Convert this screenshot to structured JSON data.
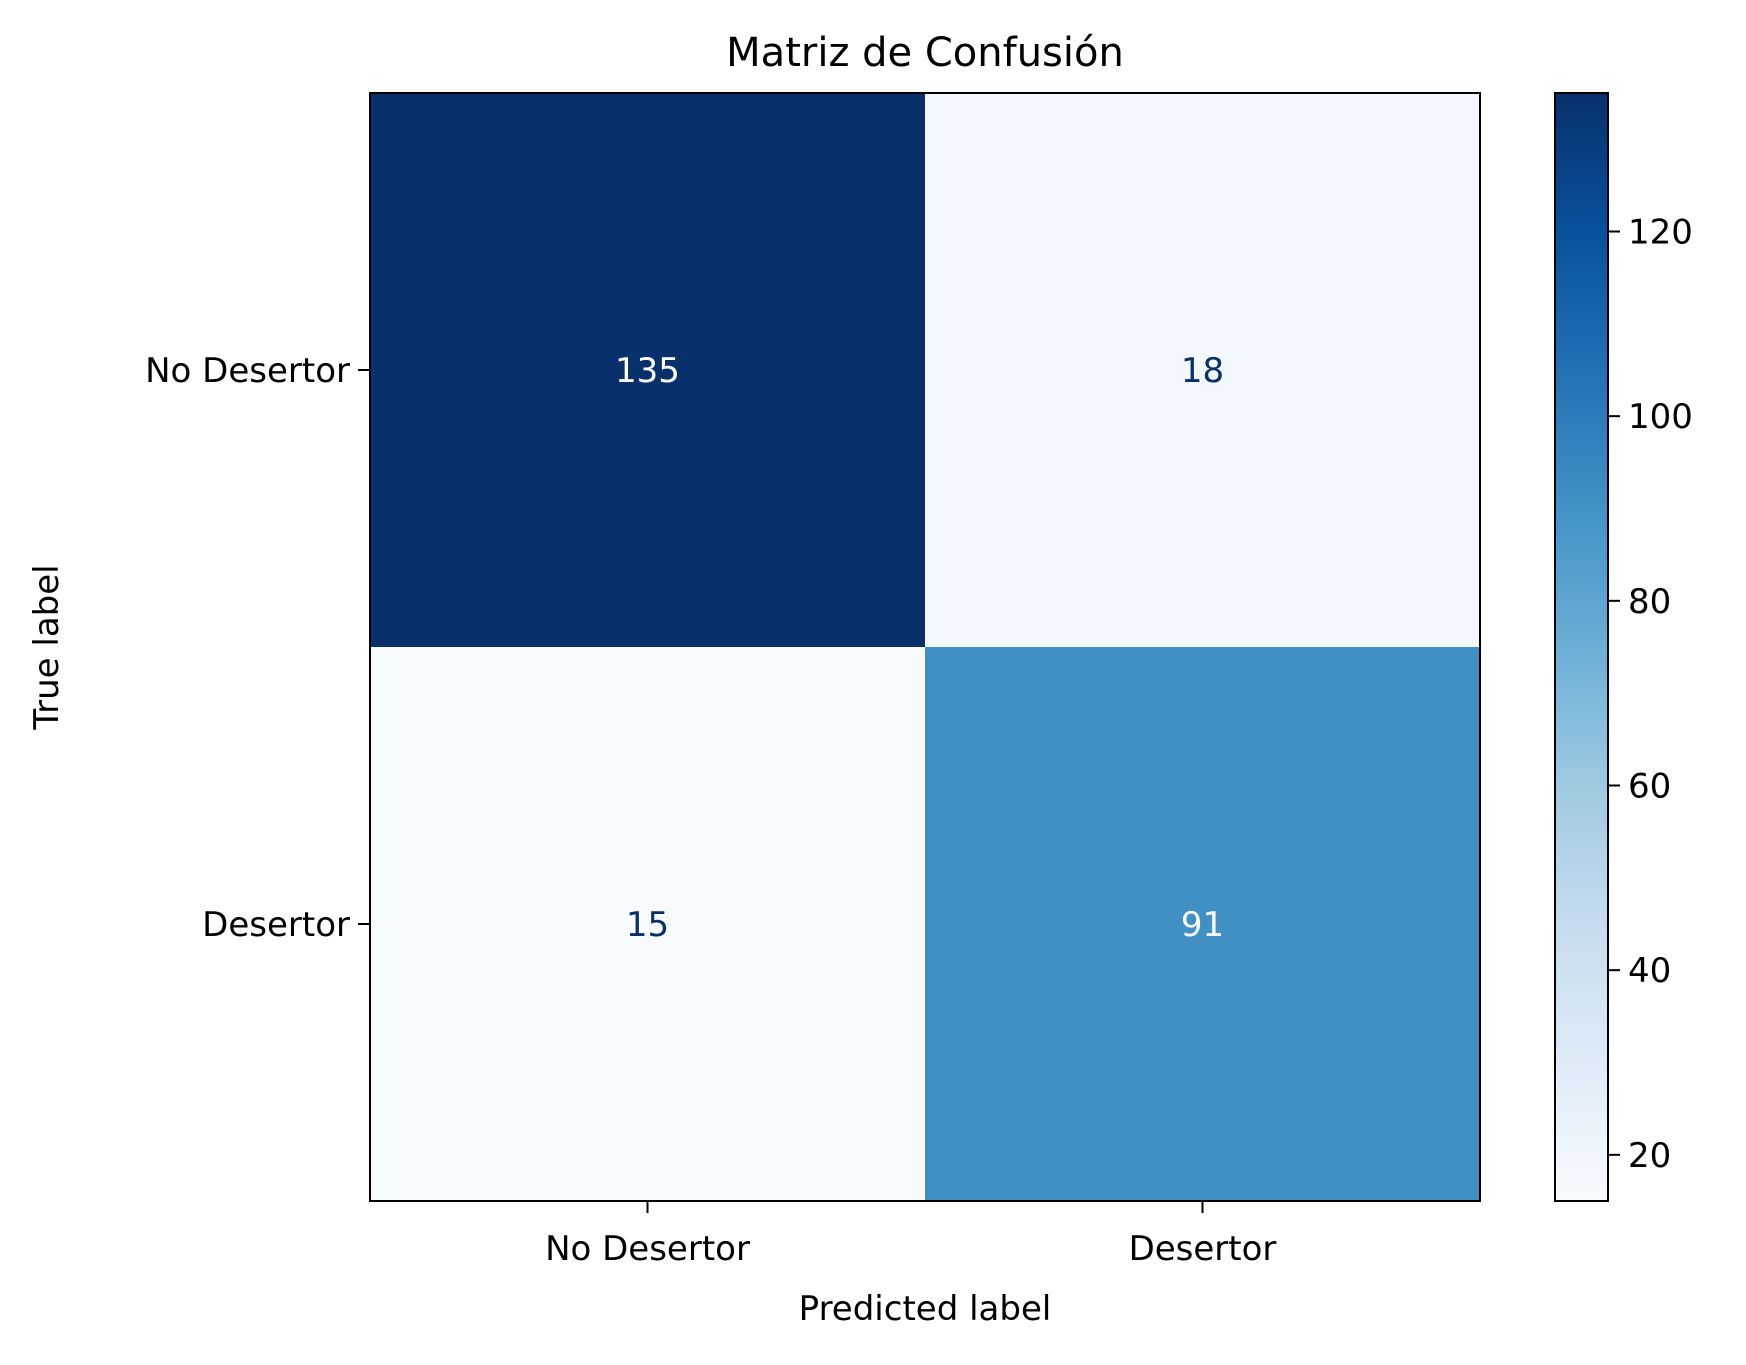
{
  "chart_data": {
    "type": "heatmap",
    "title": "Matriz de Confusión",
    "xlabel": "Predicted label",
    "ylabel": "True label",
    "x_categories": [
      "No Desertor",
      "Desertor"
    ],
    "y_categories": [
      "No Desertor",
      "Desertor"
    ],
    "values": [
      [
        135,
        18
      ],
      [
        15,
        91
      ]
    ],
    "colormap": "Blues",
    "colorbar": {
      "ticks": [
        "20",
        "40",
        "60",
        "80",
        "100",
        "120"
      ],
      "range": [
        15,
        135
      ]
    },
    "grid": false
  }
}
